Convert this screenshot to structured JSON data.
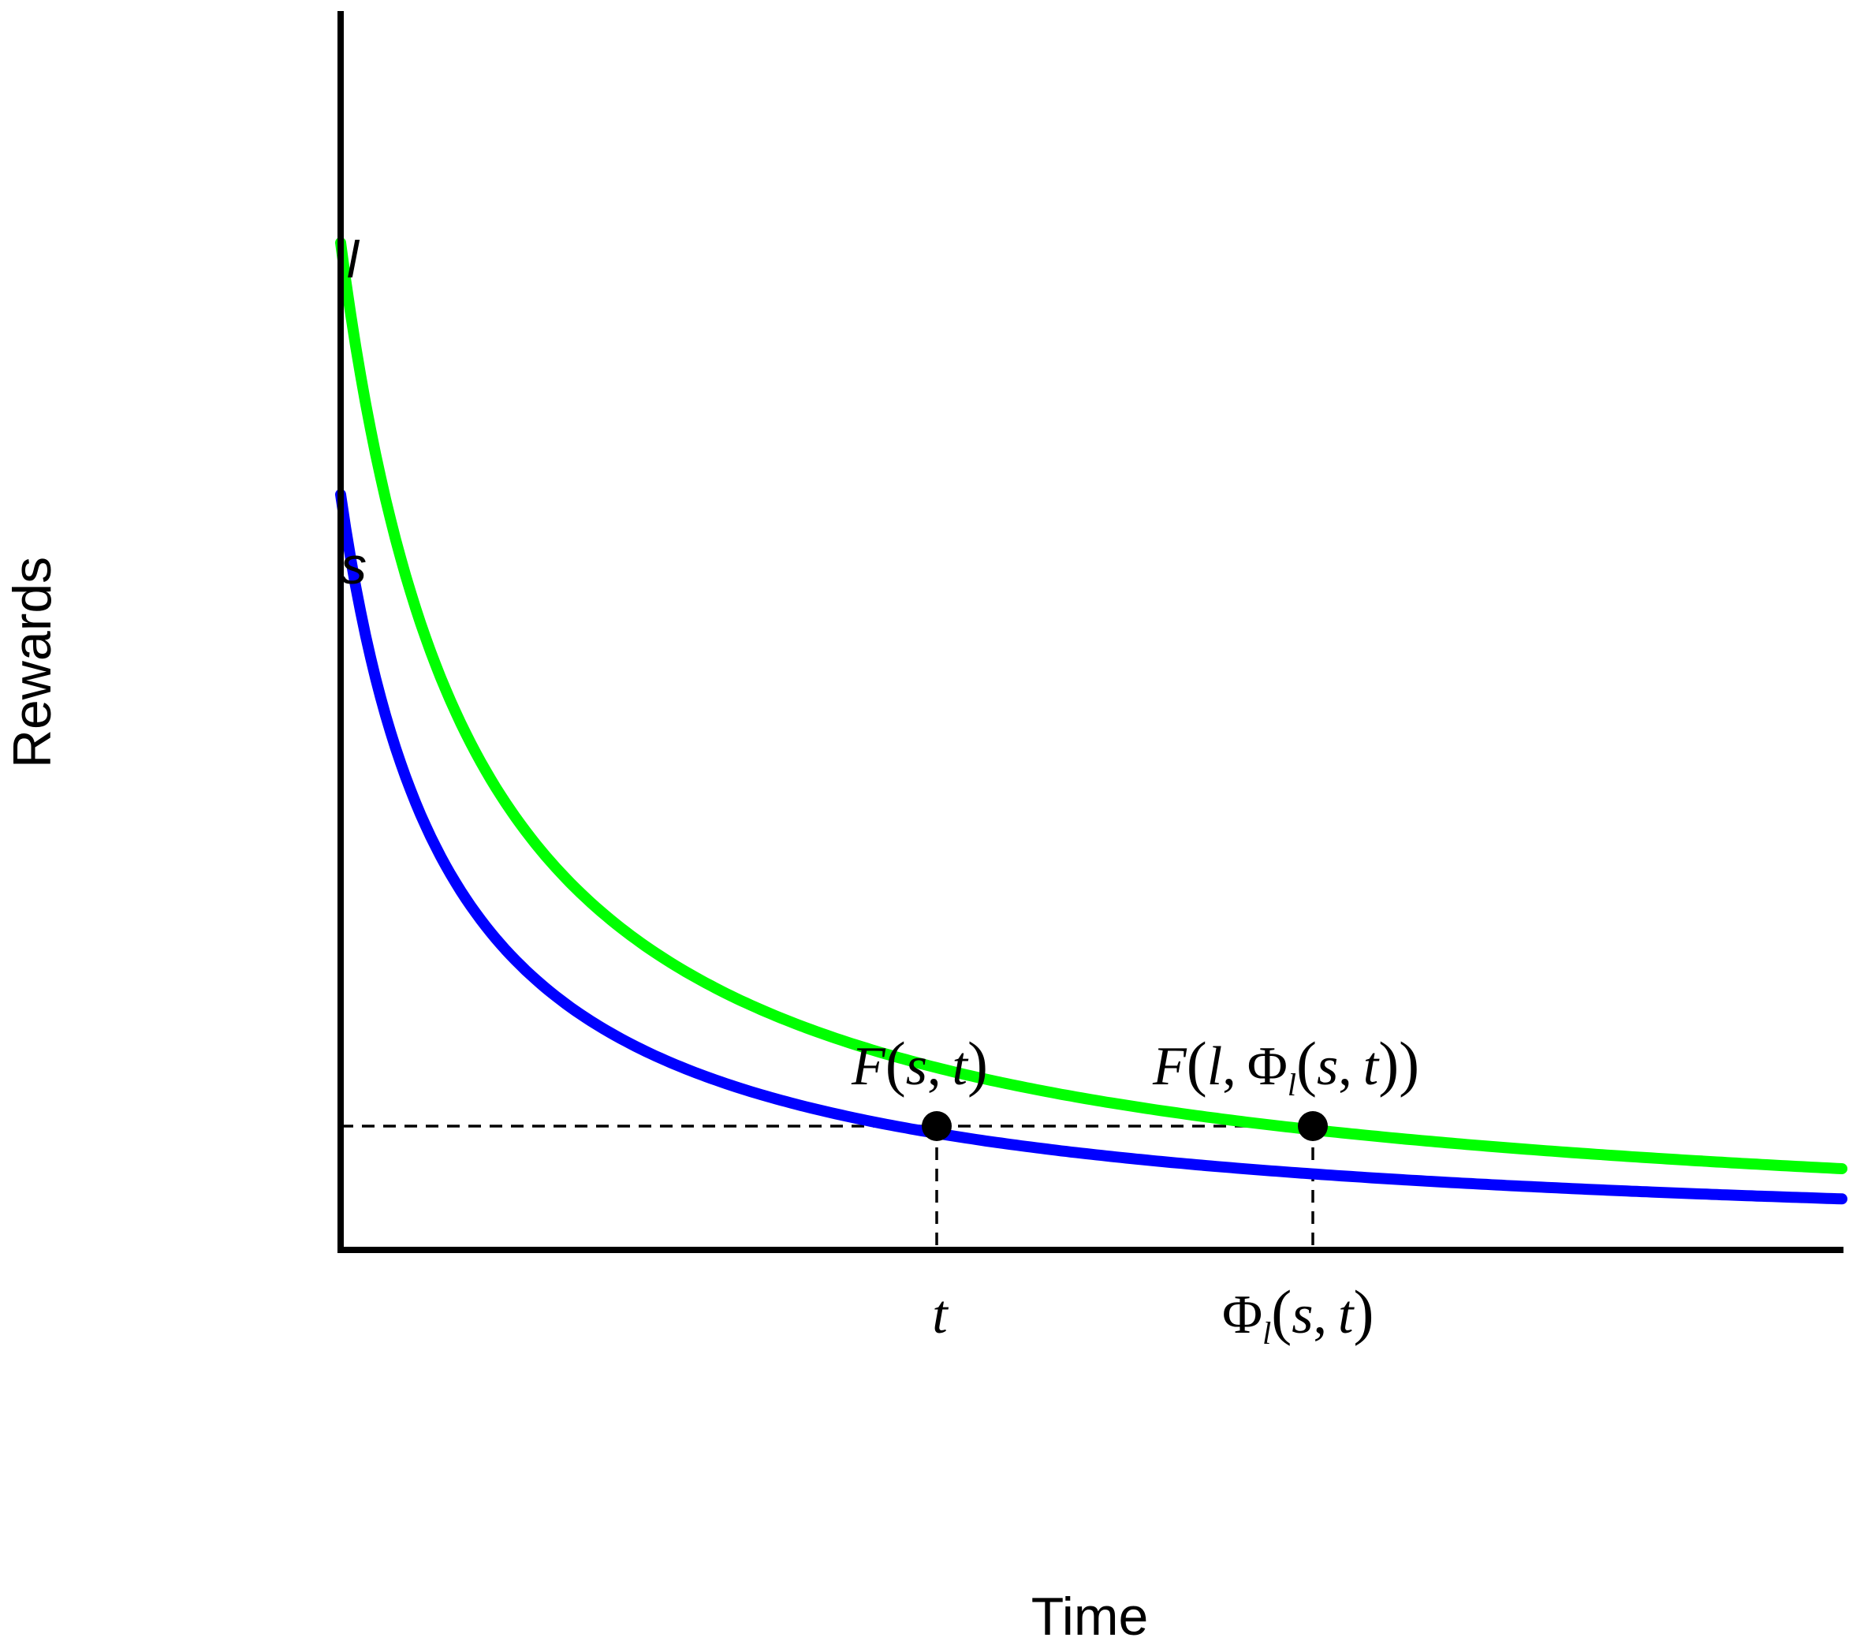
{
  "axes": {
    "x_title": "Time",
    "y_title": "Rewards"
  },
  "chart_data": {
    "type": "line",
    "series": [
      {
        "name": "l",
        "color": "#00ff00",
        "start_value": 1.0,
        "k": 0.95
      },
      {
        "name": "s",
        "color": "#0000ff",
        "start_value": 0.75,
        "k": 1.15
      }
    ],
    "x_range": [
      0,
      12
    ],
    "y_range": [
      0,
      1.23
    ],
    "markers": [
      {
        "x": 4.0,
        "y": 0.1,
        "series": "s",
        "label": "F(s, t)"
      },
      {
        "x": 6.5,
        "y": 0.1,
        "series": "l",
        "label": "F(l, Φl(s, t))"
      }
    ],
    "x_ticks": [
      {
        "x": 4.0,
        "label": "t"
      },
      {
        "x": 6.5,
        "label": "Φl(s, t)"
      }
    ],
    "dashed_level_y": 0.1
  },
  "labels": {
    "l_start": "l",
    "s_start": "s",
    "marker_1": {
      "F": "F",
      "open": "(",
      "arg1": "s",
      "comma": ",",
      "arg2": "t",
      "close": ")"
    },
    "marker_2": {
      "F": "F",
      "open": "(",
      "arg1": "l",
      "comma": ",",
      "phi": "Φ",
      "phi_sub": "l",
      "open2": "(",
      "arg2": "s",
      "comma2": ",",
      "arg3": "t",
      "close2": "))"
    },
    "tick_t": "t",
    "tick_phi": {
      "phi": "Φ",
      "phi_sub": "l",
      "open": "(",
      "arg1": "s",
      "comma": ",",
      "arg2": "t",
      "close": ")"
    }
  },
  "colors": {
    "axis": "#000000",
    "green_curve": "#00ff00",
    "blue_curve": "#0000ff",
    "marker": "#000000"
  }
}
